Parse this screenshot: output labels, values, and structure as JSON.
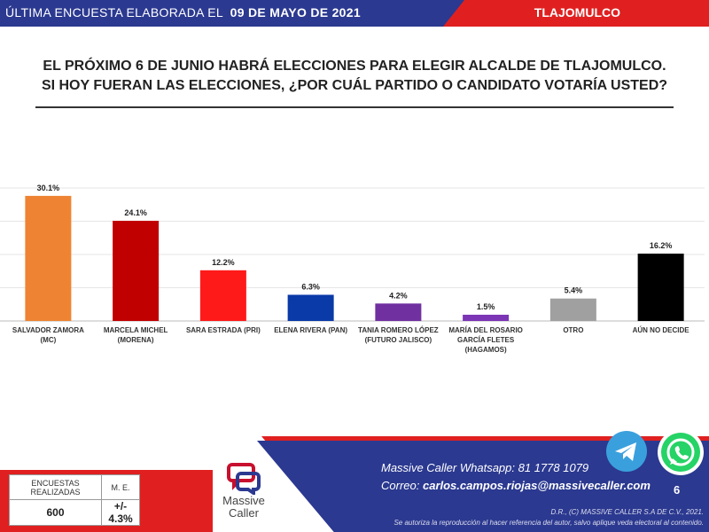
{
  "header": {
    "survey_prefix": "ÚLTIMA ENCUESTA ELABORADA EL",
    "survey_date": "09 DE MAYO DE 2021",
    "region": "TLAJOMULCO"
  },
  "question": {
    "line1": "EL PRÓXIMO 6 DE JUNIO HABRÁ ELECCIONES PARA ELEGIR ALCALDE DE TLAJOMULCO.",
    "line2": "SI HOY FUERAN LAS ELECCIONES, ¿POR CUÁL PARTIDO O CANDIDATO VOTARÍA USTED?"
  },
  "chart_data": {
    "type": "bar",
    "title": "",
    "xlabel": "",
    "ylabel": "",
    "ylim": [
      0,
      32
    ],
    "grid": true,
    "categories": [
      [
        "SALVADOR ZAMORA",
        "(MC)"
      ],
      [
        "MARCELA MICHEL",
        "(MORENA)"
      ],
      [
        "SARA ESTRADA (PRI)"
      ],
      [
        "ELENA RIVERA (PAN)"
      ],
      [
        "TANIA ROMERO LÓPEZ",
        "(FUTURO JALISCO)"
      ],
      [
        "MARÍA DEL ROSARIO",
        "GARCÍA FLETES",
        "(HAGAMOS)"
      ],
      [
        "OTRO"
      ],
      [
        "AÚN NO DECIDE"
      ]
    ],
    "values": [
      30.1,
      24.1,
      12.2,
      6.3,
      4.2,
      1.5,
      5.4,
      16.2
    ],
    "value_labels": [
      "30.1%",
      "24.1%",
      "12.2%",
      "6.3%",
      "4.2%",
      "1.5%",
      "5.4%",
      "16.2%"
    ],
    "colors": [
      "#ee8433",
      "#c00000",
      "#ff1a1a",
      "#0a3aa8",
      "#7030a0",
      "#7b35b5",
      "#a0a0a0",
      "#000000"
    ]
  },
  "stats": {
    "col1_header": "ENCUESTAS REALIZADAS",
    "col2_header": "M. E.",
    "count": "600",
    "margin": "+/- 4.3%"
  },
  "logo": {
    "line1": "Massive",
    "line2": "Caller"
  },
  "contact": {
    "whatsapp_label": "Massive Caller Whatsapp:",
    "whatsapp_number": "81 1778 1079",
    "email_label": "Correo:",
    "email": "carlos.campos.riojas@massivecaller.com"
  },
  "page_number": "6",
  "disclaimer": {
    "line1": "D.R., (C) MASSIVE CALLER S.A DE C.V., 2021.",
    "line2": "Se autoriza la reproducción al hacer referencia del autor, salvo aplique veda electoral al contenido."
  },
  "icons": {
    "telegram": "telegram-icon",
    "whatsapp": "whatsapp-icon"
  },
  "colors": {
    "brand_blue": "#2b3990",
    "brand_red": "#e02020"
  }
}
